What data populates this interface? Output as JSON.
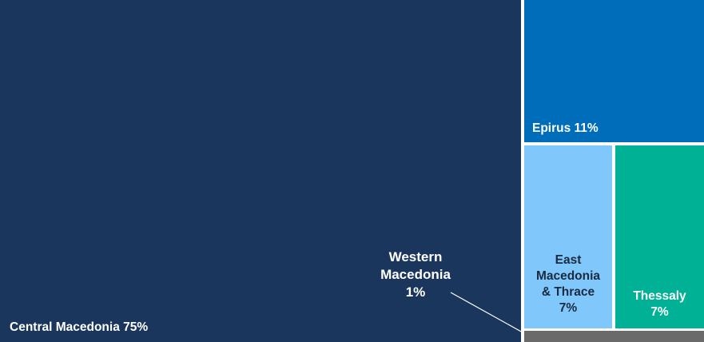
{
  "chart_data": {
    "type": "treemap",
    "items": [
      {
        "name": "Central Macedonia",
        "value": 75,
        "label": "Central Macedonia 75%",
        "color": "#1a365d",
        "text_color": "#ffffff"
      },
      {
        "name": "Epirus",
        "value": 11,
        "label": "Epirus 11%",
        "color": "#006dbb",
        "text_color": "#ffffff"
      },
      {
        "name": "East Macedonia & Thrace",
        "value": 7,
        "label_lines": [
          "East",
          "Macedonia",
          "& Thrace",
          "7%"
        ],
        "color": "#80c8fc",
        "text_color": "#1a2a40"
      },
      {
        "name": "Thessaly",
        "value": 7,
        "label_lines": [
          "Thessaly",
          "7%"
        ],
        "color": "#00b196",
        "text_color": "#ffffff"
      },
      {
        "name": "Western Macedonia",
        "value": 1,
        "label_lines": [
          "Western",
          "Macedonia",
          "1%"
        ],
        "color": "#6a6a6a",
        "text_color": "#ffffff"
      }
    ]
  }
}
